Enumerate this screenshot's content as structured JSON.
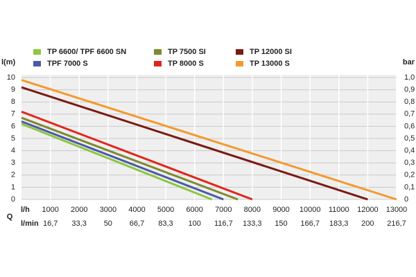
{
  "chart_data": {
    "type": "line",
    "y_label": "l(m)",
    "y2_label": "bar",
    "x_label": "Q",
    "x_unit": "l/h",
    "x2_unit": "l/min",
    "xlim": [
      0,
      13000
    ],
    "xticks": [
      1000,
      2000,
      3000,
      4000,
      5000,
      6000,
      7000,
      8000,
      9000,
      10000,
      11000,
      12000,
      13000
    ],
    "x2lim": [
      0,
      216.7
    ],
    "x2ticks": [
      {
        "value": 16.7,
        "label": "16,7"
      },
      {
        "value": 33.3,
        "label": "33,3"
      },
      50,
      {
        "value": 66.7,
        "label": "66,7"
      },
      {
        "value": 83.3,
        "label": "83,3"
      },
      100,
      {
        "value": 116.7,
        "label": "116,7"
      },
      {
        "value": 133.3,
        "label": "133,3"
      },
      150,
      {
        "value": 166.7,
        "label": "166,7"
      },
      {
        "value": 183.3,
        "label": "183,3"
      },
      200,
      {
        "value": 216.7,
        "label": "216,7"
      }
    ],
    "ylim": [
      0,
      10
    ],
    "yticks": [
      0,
      1,
      2,
      3,
      4,
      5,
      6,
      7,
      8,
      9,
      10
    ],
    "y2lim": [
      0,
      1
    ],
    "y2ticks": [
      0,
      {
        "value": 0.1,
        "label": "0,1"
      },
      {
        "value": 0.2,
        "label": "0,2"
      },
      {
        "value": 0.3,
        "label": "0,3"
      },
      {
        "value": 0.4,
        "label": "0,4"
      },
      {
        "value": 0.5,
        "label": "0,5"
      },
      {
        "value": 0.6,
        "label": "0,6"
      },
      {
        "value": 0.7,
        "label": "0,7"
      },
      {
        "value": 0.8,
        "label": "0,8"
      },
      {
        "value": 0.9,
        "label": "0,9"
      },
      {
        "value": 1.0,
        "label": "1,0"
      }
    ],
    "grid": true,
    "series": [
      {
        "name": "TP 6600/ TPF 6600 SN",
        "color": "#8dc63f",
        "x": [
          0,
          6600
        ],
        "values": [
          6.2,
          0
        ]
      },
      {
        "name": "TPF 7000 S",
        "color": "#4a5aa8",
        "x": [
          0,
          7000
        ],
        "values": [
          6.4,
          0
        ]
      },
      {
        "name": "TP 7500 SI",
        "color": "#7d8a2e",
        "x": [
          0,
          7500
        ],
        "values": [
          6.7,
          0
        ]
      },
      {
        "name": "TP 8000 S",
        "color": "#e1251b",
        "x": [
          0,
          8000
        ],
        "values": [
          7.2,
          0
        ]
      },
      {
        "name": "TP 12000 SI",
        "color": "#7a1a12",
        "x": [
          0,
          12000
        ],
        "values": [
          9.2,
          0
        ]
      },
      {
        "name": "TP 13000 S",
        "color": "#f29a2e",
        "x": [
          0,
          13000
        ],
        "values": [
          9.8,
          0
        ]
      }
    ]
  }
}
